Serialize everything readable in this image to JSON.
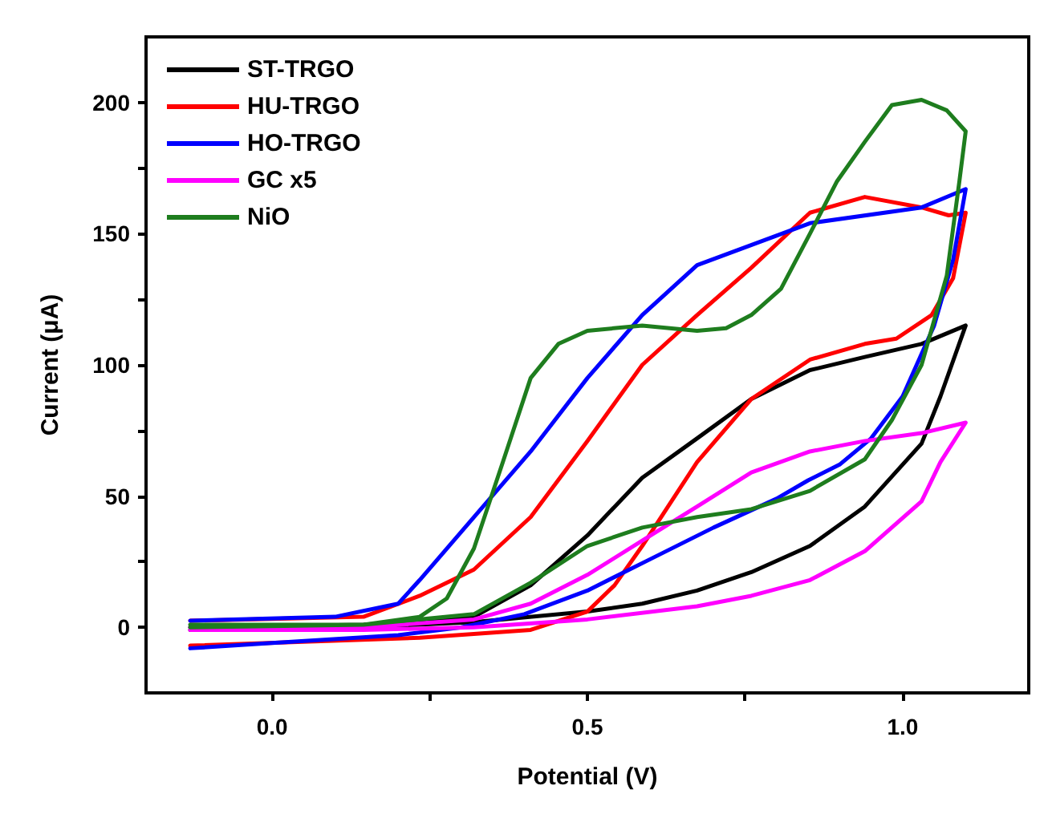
{
  "chart_data": {
    "type": "line",
    "xlabel": "Potential (V)",
    "ylabel": "Current (μA)",
    "xlim": [
      -0.2,
      1.2
    ],
    "ylim": [
      -25,
      225
    ],
    "xticks": [
      {
        "value": 0,
        "label": "0.0"
      },
      {
        "value": 0.25,
        "label": null
      },
      {
        "value": 0.5,
        "label": "0.5"
      },
      {
        "value": 0.75,
        "label": null
      },
      {
        "value": 1,
        "label": "1.0"
      }
    ],
    "yticks": [
      0,
      {
        "value": 25,
        "label": null
      },
      50,
      {
        "value": 75,
        "label": null
      },
      100,
      {
        "value": 125,
        "label": null
      },
      150,
      {
        "value": 175,
        "label": null
      },
      200
    ],
    "legend": "top left",
    "marker": "none",
    "line_style": "solid",
    "series": [
      {
        "name": "ST-TRGO",
        "color": "#000000",
        "x": [
          -0.13,
          0.145,
          0.32,
          0.41,
          0.5,
          0.587,
          0.674,
          0.76,
          0.853,
          0.94,
          1.03,
          1.1,
          1.06,
          1.03,
          0.94,
          0.853,
          0.76,
          0.674,
          0.587,
          0.5,
          0.32,
          0.145,
          -0.13
        ],
        "values": [
          0,
          1,
          4,
          16,
          35,
          57,
          72,
          87,
          98,
          103,
          108,
          115,
          88,
          70,
          46,
          31,
          21,
          14,
          9,
          6,
          2,
          0,
          -1
        ]
      },
      {
        "name": "HU-TRGO",
        "color": "#ff0000",
        "x": [
          -0.13,
          0.145,
          0.234,
          0.32,
          0.41,
          0.5,
          0.587,
          0.674,
          0.76,
          0.853,
          0.94,
          1.03,
          1.073,
          1.1,
          1.08,
          1.046,
          0.99,
          0.94,
          0.853,
          0.76,
          0.674,
          0.587,
          0.543,
          0.5,
          0.41,
          0.234,
          -0.13
        ],
        "values": [
          2.5,
          4,
          12,
          22,
          42,
          71,
          100,
          119,
          137,
          158,
          164,
          160,
          157,
          158,
          133,
          119,
          110,
          108,
          102,
          87,
          63,
          31,
          16,
          6,
          -1,
          -4,
          -7
        ]
      },
      {
        "name": "HO-TRGO",
        "color": "#0000ff",
        "x": [
          -0.13,
          0.1,
          0.2,
          0.234,
          0.32,
          0.41,
          0.5,
          0.587,
          0.674,
          0.853,
          1.03,
          1.1,
          1.08,
          1.05,
          1.0,
          0.95,
          0.9,
          0.85,
          0.8,
          0.7,
          0.6,
          0.5,
          0.4,
          0.3,
          0.2,
          0.0,
          -0.13
        ],
        "values": [
          2.5,
          4,
          9,
          18,
          42,
          67,
          95,
          119,
          138,
          154,
          160,
          167,
          140,
          115,
          88,
          72,
          62,
          56,
          49,
          38,
          26,
          14,
          5,
          0,
          -3,
          -6,
          -8
        ]
      },
      {
        "name": "GC x5",
        "color": "#ff00ff",
        "x": [
          -0.13,
          0.145,
          0.32,
          0.41,
          0.5,
          0.587,
          0.674,
          0.76,
          0.853,
          0.94,
          1.03,
          1.1,
          1.06,
          1.03,
          0.94,
          0.853,
          0.76,
          0.674,
          0.5,
          0.32,
          0.145,
          -0.13
        ],
        "values": [
          0,
          0,
          3,
          9,
          20,
          33,
          46,
          59,
          67,
          71,
          74,
          78,
          63,
          48,
          29,
          18,
          12,
          8,
          3,
          0,
          -1,
          -1
        ]
      },
      {
        "name": "NiO",
        "color": "#1e7d1e",
        "x": [
          -0.13,
          0.145,
          0.234,
          0.277,
          0.32,
          0.366,
          0.41,
          0.454,
          0.5,
          0.587,
          0.674,
          0.72,
          0.76,
          0.807,
          0.853,
          0.896,
          0.94,
          0.983,
          1.03,
          1.07,
          1.1,
          1.09,
          1.07,
          1.03,
          0.983,
          0.94,
          0.853,
          0.76,
          0.674,
          0.587,
          0.5,
          0.41,
          0.32,
          0.145,
          -0.13
        ],
        "values": [
          1,
          1,
          4,
          11,
          30,
          63,
          95,
          108,
          113,
          115,
          113,
          114,
          119,
          129,
          150,
          170,
          185,
          199,
          201,
          197,
          189,
          170,
          134,
          100,
          79,
          64,
          52,
          45,
          42,
          38,
          31,
          17,
          5,
          1,
          0
        ]
      }
    ]
  }
}
